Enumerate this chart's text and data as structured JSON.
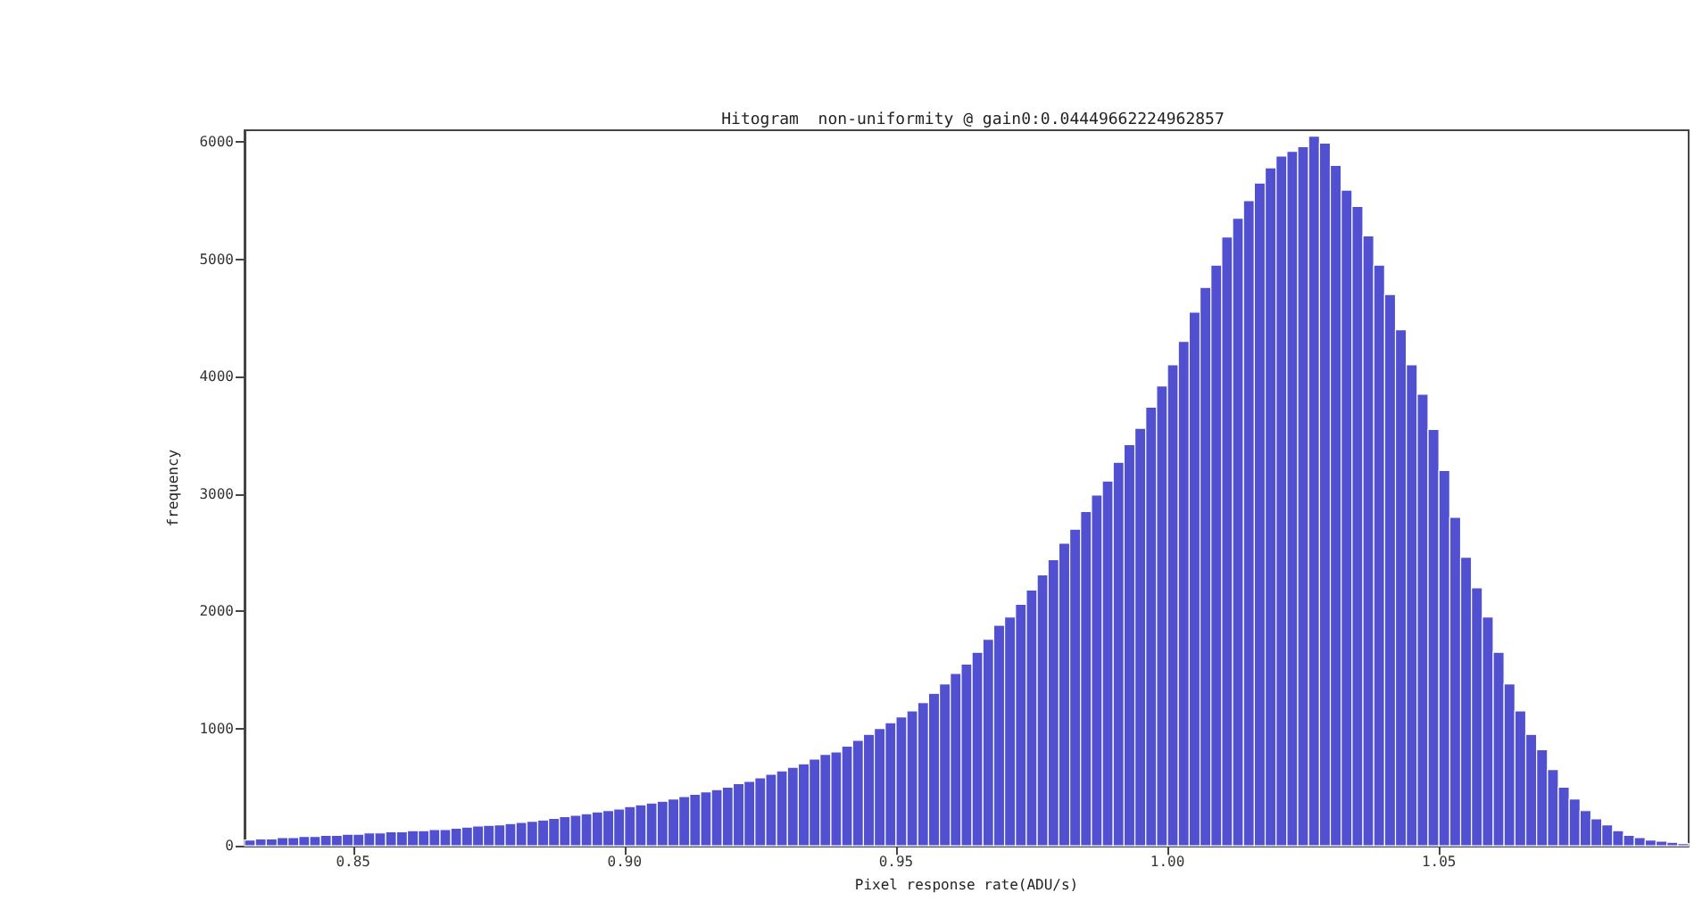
{
  "chart_data": {
    "type": "histogram",
    "title": "Hitogram  non-uniformity @ gain0:0.04449662224962857",
    "xlabel": "Pixel response rate(ADU/s)",
    "ylabel": "frequency",
    "color": "#5050d0",
    "bins": [
      0.83,
      0.832,
      0.834,
      0.836,
      0.838,
      0.84,
      0.842,
      0.844,
      0.846,
      0.848,
      0.85,
      0.852,
      0.854,
      0.856,
      0.858,
      0.86,
      0.862,
      0.864,
      0.866,
      0.868,
      0.87,
      0.872,
      0.874,
      0.876,
      0.878,
      0.88,
      0.882,
      0.884,
      0.886,
      0.888,
      0.89,
      0.892,
      0.894,
      0.896,
      0.898,
      0.9,
      0.902,
      0.904,
      0.906,
      0.908,
      0.91,
      0.912,
      0.914,
      0.916,
      0.918,
      0.92,
      0.922,
      0.924,
      0.926,
      0.928,
      0.93,
      0.932,
      0.934,
      0.936,
      0.938,
      0.94,
      0.942,
      0.944,
      0.946,
      0.948,
      0.95,
      0.952,
      0.954,
      0.956,
      0.958,
      0.96,
      0.962,
      0.964,
      0.966,
      0.968,
      0.97,
      0.972,
      0.974,
      0.976,
      0.978,
      0.98,
      0.982,
      0.984,
      0.986,
      0.988,
      0.99,
      0.992,
      0.994,
      0.996,
      0.998,
      1.0,
      1.002,
      1.004,
      1.006,
      1.008,
      1.01,
      1.012,
      1.014,
      1.016,
      1.018,
      1.02,
      1.022,
      1.024,
      1.026,
      1.028,
      1.03,
      1.032,
      1.034,
      1.036,
      1.038,
      1.04,
      1.042,
      1.044,
      1.046,
      1.048,
      1.05,
      1.052,
      1.054,
      1.056,
      1.058,
      1.06,
      1.062,
      1.064,
      1.066,
      1.068,
      1.07,
      1.072,
      1.074,
      1.076,
      1.078,
      1.08,
      1.082,
      1.084,
      1.086,
      1.088,
      1.09,
      1.092,
      1.094,
      1.096
    ],
    "values": [
      50,
      60,
      60,
      70,
      70,
      80,
      80,
      90,
      90,
      100,
      100,
      110,
      110,
      120,
      120,
      130,
      130,
      140,
      140,
      150,
      160,
      170,
      175,
      180,
      190,
      200,
      210,
      220,
      235,
      250,
      260,
      275,
      290,
      300,
      315,
      335,
      350,
      365,
      380,
      400,
      420,
      440,
      460,
      480,
      500,
      530,
      550,
      580,
      610,
      640,
      670,
      700,
      740,
      780,
      800,
      850,
      900,
      950,
      1000,
      1050,
      1100,
      1150,
      1220,
      1300,
      1380,
      1470,
      1550,
      1650,
      1760,
      1880,
      1950,
      2060,
      2180,
      2310,
      2440,
      2580,
      2700,
      2850,
      2990,
      3110,
      3270,
      3420,
      3560,
      3740,
      3920,
      4100,
      4300,
      4550,
      4760,
      4950,
      5190,
      5350,
      5500,
      5650,
      5780,
      5880,
      5920,
      5960,
      6050,
      5990,
      5800,
      5590,
      5450,
      5200,
      4950,
      4700,
      4400,
      4100,
      3850,
      3550,
      3200,
      2800,
      2460,
      2200,
      1950,
      1650,
      1380,
      1150,
      950,
      820,
      650,
      500,
      400,
      300,
      230,
      180,
      130,
      90,
      70,
      50,
      40,
      30,
      20
    ],
    "xlim": [
      0.83,
      1.096
    ],
    "xticks": [
      0.85,
      {
        "value": 0.9,
        "label": "0.90"
      },
      0.95,
      {
        "value": 1.0,
        "label": "1.00"
      },
      1.05
    ],
    "ylim": [
      0,
      6100
    ],
    "yticks": [
      0,
      1000,
      2000,
      3000,
      4000,
      5000,
      6000
    ],
    "grid": false
  }
}
